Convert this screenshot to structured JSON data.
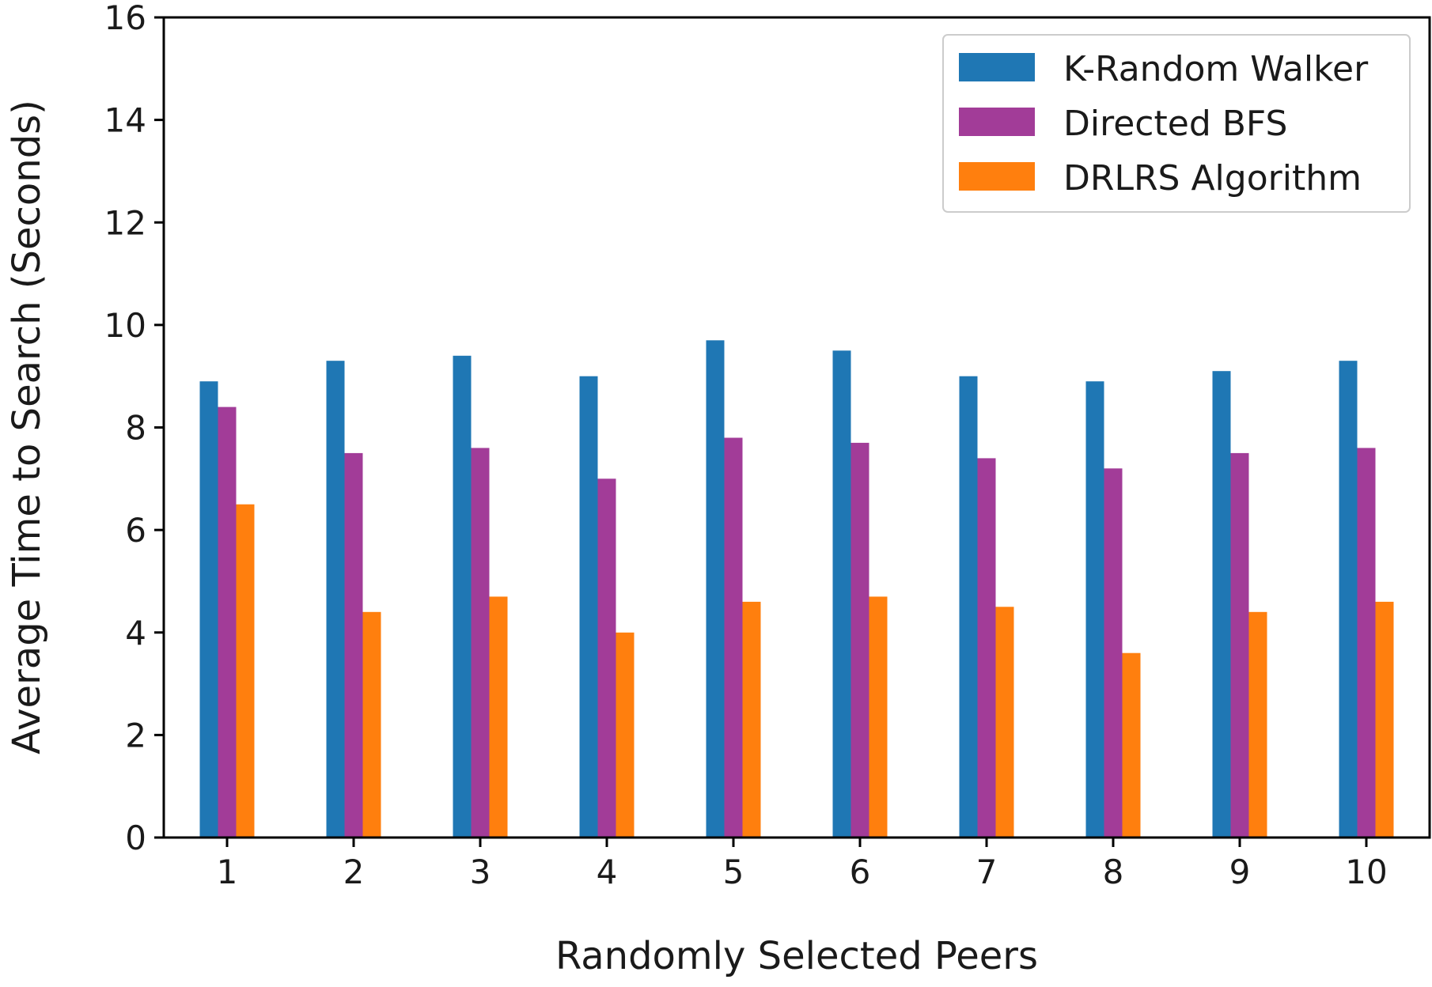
{
  "chart_data": {
    "type": "bar",
    "title": "",
    "xlabel": "Randomly Selected Peers",
    "ylabel": "Average Time to Search (Seconds)",
    "ylim": [
      0,
      16
    ],
    "yticks": [
      0,
      2,
      4,
      6,
      8,
      10,
      12,
      14,
      16
    ],
    "categories": [
      "1",
      "2",
      "3",
      "4",
      "5",
      "6",
      "7",
      "8",
      "9",
      "10"
    ],
    "series": [
      {
        "name": "K-Random Walker",
        "color": "#1f77b4",
        "values": [
          8.9,
          9.3,
          9.4,
          9.0,
          9.7,
          9.5,
          9.0,
          8.9,
          9.1,
          9.3
        ]
      },
      {
        "name": "Directed BFS",
        "color": "#a23c98",
        "values": [
          8.4,
          7.5,
          7.6,
          7.0,
          7.8,
          7.7,
          7.4,
          7.2,
          7.5,
          7.6
        ]
      },
      {
        "name": "DRLRS Algorithm",
        "color": "#ff7f0e",
        "values": [
          6.5,
          4.4,
          4.7,
          4.0,
          4.6,
          4.7,
          4.5,
          3.6,
          4.4,
          4.6
        ]
      }
    ],
    "legend_position": "top-right",
    "grid": false
  }
}
